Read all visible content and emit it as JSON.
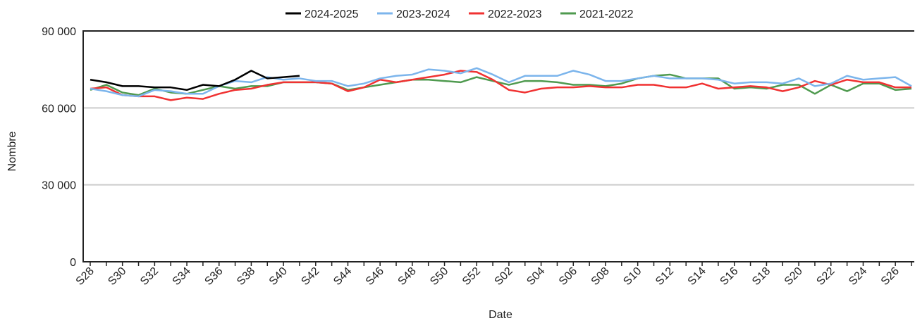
{
  "chart_data": {
    "type": "line",
    "x_label": "Date",
    "y_label": "Nombre",
    "categories": [
      "S28",
      null,
      "S30",
      null,
      "S32",
      null,
      "S34",
      null,
      "S36",
      null,
      "S38",
      null,
      "S40",
      null,
      "S42",
      null,
      "S44",
      null,
      "S46",
      null,
      "S48",
      null,
      "S50",
      null,
      "S52",
      null,
      "S02",
      null,
      "S04",
      null,
      "S06",
      null,
      "S08",
      null,
      "S10",
      null,
      "S12",
      null,
      "S14",
      null,
      "S16",
      null,
      "S18",
      null,
      "S20",
      null,
      "S22",
      null,
      "S24",
      null,
      "S26",
      null
    ],
    "ylim": [
      0,
      90000
    ],
    "yticks": [
      0,
      {
        "value": 30000,
        "label": "30 000"
      },
      {
        "value": 60000,
        "label": "60 000"
      },
      {
        "value": 90000,
        "label": "90 000"
      }
    ],
    "grid": true,
    "legend": "top",
    "series": [
      {
        "name": "2024-2025",
        "color": "#000000",
        "values": [
          71000,
          70000,
          68500,
          68500,
          68000,
          68000,
          67000,
          69000,
          68500,
          71000,
          74500,
          71500,
          72000,
          72500,
          null,
          null,
          null,
          null,
          null,
          null,
          null,
          null,
          null,
          null,
          null,
          null,
          null,
          null,
          null,
          null,
          null,
          null,
          null,
          null,
          null,
          null,
          null,
          null,
          null,
          null,
          null,
          null,
          null,
          null,
          null,
          null,
          null,
          null,
          null,
          null,
          null,
          null
        ]
      },
      {
        "name": "2023-2024",
        "color": "#7cb5ec",
        "values": [
          67500,
          66500,
          65000,
          64500,
          67000,
          66500,
          65500,
          65500,
          68500,
          70500,
          70000,
          72000,
          71000,
          71500,
          70500,
          70500,
          68500,
          69500,
          71500,
          72500,
          73000,
          75000,
          74500,
          73500,
          75500,
          73000,
          70000,
          72500,
          72500,
          72500,
          74500,
          73000,
          70500,
          70500,
          71500,
          72500,
          71500,
          71500,
          71500,
          71000,
          69500,
          70000,
          70000,
          69500,
          71500,
          68500,
          69500,
          72500,
          71000,
          71500,
          72000,
          68500
        ]
      },
      {
        "name": "2022-2023",
        "color": "#f03232",
        "values": [
          67500,
          68000,
          65000,
          64500,
          64500,
          63000,
          64000,
          63500,
          65500,
          67000,
          67500,
          69000,
          70000,
          70000,
          70000,
          69500,
          66500,
          68000,
          71000,
          70000,
          71000,
          72000,
          73000,
          74500,
          74000,
          71000,
          67000,
          66000,
          67500,
          68000,
          68000,
          68500,
          68000,
          68000,
          69000,
          69000,
          68000,
          68000,
          69500,
          67500,
          68000,
          68500,
          68000,
          66500,
          68000,
          70500,
          69000,
          71000,
          70000,
          70000,
          68000,
          68000
        ]
      },
      {
        "name": "2021-2022",
        "color": "#4f9a4f",
        "values": [
          67000,
          69000,
          66000,
          65000,
          67500,
          66000,
          65500,
          67000,
          68500,
          67500,
          68500,
          68500,
          70000,
          70000,
          70000,
          69500,
          67000,
          68000,
          69000,
          70000,
          71000,
          71000,
          70500,
          70000,
          72000,
          70500,
          69000,
          70500,
          70500,
          70000,
          69000,
          69000,
          68500,
          69500,
          71500,
          72500,
          73000,
          71500,
          71500,
          71500,
          67500,
          68000,
          67500,
          69000,
          69000,
          65500,
          69000,
          66500,
          69500,
          69500,
          67000,
          67500
        ]
      }
    ]
  }
}
